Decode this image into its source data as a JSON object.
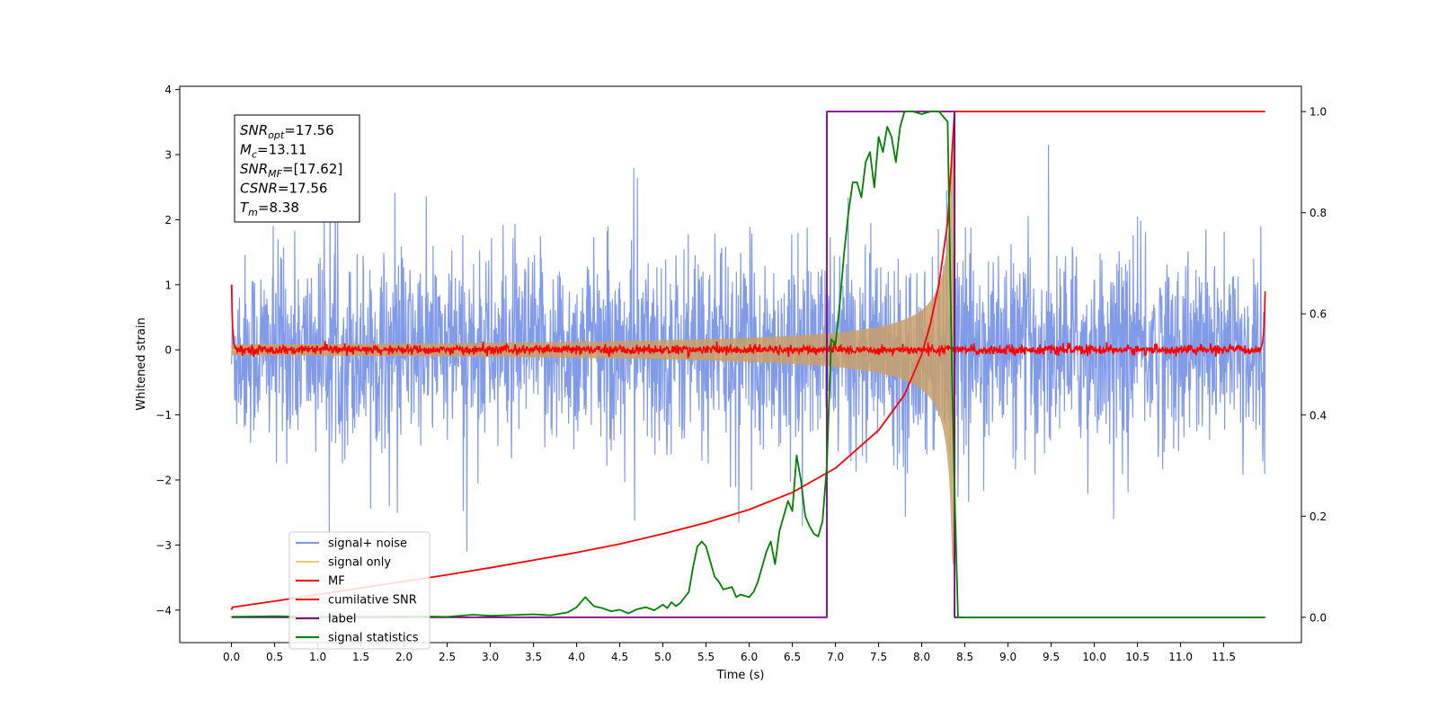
{
  "chart_data": {
    "type": "line",
    "xlabel": "Time (s)",
    "ylabel": "Whitened strain",
    "xlim": [
      -0.6,
      12.4
    ],
    "ylim": [
      -4.5,
      4.05
    ],
    "y2lim": [
      -0.05,
      1.05
    ],
    "x_ticks": [
      0.0,
      0.5,
      1.0,
      1.5,
      2.0,
      2.5,
      3.0,
      3.5,
      4.0,
      4.5,
      5.0,
      5.5,
      6.0,
      6.5,
      7.0,
      7.5,
      8.0,
      8.5,
      9.0,
      9.5,
      10.0,
      10.5,
      11.0,
      11.5
    ],
    "x_tick_labels": [
      "0.0",
      "0.5",
      "1.0",
      "1.5",
      "2.0",
      "2.5",
      "3.0",
      "3.5",
      "4.0",
      "4.5",
      "5.0",
      "5.5",
      "6.0",
      "6.5",
      "7.0",
      "7.5",
      "8.0",
      "8.5",
      "9.0",
      "9.5",
      "10.0",
      "10.5",
      "11.0",
      "11.5"
    ],
    "y_ticks": [
      4,
      3,
      2,
      1,
      0,
      -1,
      -2,
      -3,
      -4
    ],
    "y_tick_labels": [
      "4",
      "3",
      "2",
      "1",
      "0",
      "−1",
      "−2",
      "−3",
      "−4"
    ],
    "y2_ticks": [
      1.0,
      0.8,
      0.6,
      0.4,
      0.2,
      0.0
    ],
    "y2_tick_labels": [
      "1.0",
      "0.8",
      "0.6",
      "0.4",
      "0.2",
      "0.0"
    ],
    "grid": false,
    "legend_position": "lower-left",
    "annotation": {
      "lines": [
        {
          "sym": "SNR",
          "sub": "opt",
          "rest": "=17.56"
        },
        {
          "sym": "M",
          "sub": "c",
          "rest": "=13.11"
        },
        {
          "sym": "SNR",
          "sub": "MF",
          "rest": "=[17.62]"
        },
        {
          "sym": "CSNR",
          "sub": "",
          "rest": "=17.56"
        },
        {
          "sym": "T",
          "sub": "m",
          "rest": "=8.38"
        }
      ]
    },
    "noise_band": {
      "x_start": 0.0,
      "x_end": 11.98,
      "typical_range": [
        -2.0,
        2.0
      ],
      "extreme_range": [
        -4.15,
        3.68
      ]
    },
    "chirp": {
      "x_start": 0.0,
      "x_end": 8.38,
      "peak_amplitude": 3.3
    },
    "series": [
      {
        "name": "signal+ noise",
        "color": "#7b96e8",
        "axis": "left",
        "note_values": "dense noise, not individually readable"
      },
      {
        "name": "signal only",
        "color": "#f5c878",
        "axis": "left"
      },
      {
        "name": "MF",
        "color": "#ff0000",
        "axis": "left",
        "x": [
          0.0,
          0.02,
          0.05,
          11.93,
          11.96,
          11.98
        ],
        "y": [
          1.0,
          0.2,
          0.0,
          0.0,
          0.2,
          0.9
        ]
      },
      {
        "name": "cumilative SNR",
        "color": "#ff0000",
        "axis": "right",
        "x": [
          0.0,
          0.01,
          0.5,
          1.0,
          1.5,
          2.0,
          2.5,
          3.0,
          3.5,
          4.0,
          4.5,
          5.0,
          5.5,
          6.0,
          6.5,
          7.0,
          7.5,
          7.8,
          8.0,
          8.1,
          8.2,
          8.3,
          8.38,
          8.4,
          11.98
        ],
        "y": [
          0.015,
          0.02,
          0.032,
          0.045,
          0.058,
          0.071,
          0.084,
          0.098,
          0.113,
          0.128,
          0.145,
          0.165,
          0.187,
          0.213,
          0.247,
          0.295,
          0.37,
          0.44,
          0.52,
          0.58,
          0.66,
          0.78,
          1.0,
          1.0,
          1.0
        ]
      },
      {
        "name": "label",
        "color": "#800080",
        "axis": "right",
        "x": [
          0.0,
          6.9,
          6.9,
          8.38,
          8.38,
          11.98
        ],
        "y": [
          0.0,
          0.0,
          1.0,
          1.0,
          0.0,
          0.0
        ]
      },
      {
        "name": "signal statistics",
        "color": "#008000",
        "axis": "right",
        "x": [
          0.0,
          0.5,
          1.0,
          1.5,
          2.0,
          2.5,
          2.8,
          3.0,
          3.5,
          3.7,
          3.9,
          4.0,
          4.1,
          4.2,
          4.3,
          4.4,
          4.5,
          4.6,
          4.7,
          4.8,
          4.9,
          5.0,
          5.05,
          5.1,
          5.15,
          5.2,
          5.3,
          5.35,
          5.4,
          5.45,
          5.5,
          5.55,
          5.6,
          5.65,
          5.7,
          5.8,
          5.85,
          5.9,
          6.0,
          6.05,
          6.1,
          6.2,
          6.25,
          6.3,
          6.35,
          6.4,
          6.45,
          6.5,
          6.55,
          6.6,
          6.65,
          6.7,
          6.75,
          6.8,
          6.85,
          6.9,
          6.95,
          7.0,
          7.05,
          7.1,
          7.15,
          7.2,
          7.25,
          7.3,
          7.35,
          7.4,
          7.45,
          7.5,
          7.55,
          7.6,
          7.65,
          7.7,
          7.75,
          7.8,
          7.85,
          7.9,
          8.0,
          8.1,
          8.2,
          8.3,
          8.35,
          8.38,
          8.42,
          8.5,
          9.0,
          9.5,
          10.0,
          10.5,
          11.0,
          11.5,
          11.98
        ],
        "y": [
          0.001,
          0.002,
          0.001,
          0.001,
          0.002,
          0.001,
          0.005,
          0.003,
          0.006,
          0.004,
          0.01,
          0.02,
          0.04,
          0.022,
          0.018,
          0.012,
          0.015,
          0.008,
          0.016,
          0.02,
          0.014,
          0.025,
          0.018,
          0.03,
          0.022,
          0.028,
          0.05,
          0.1,
          0.14,
          0.15,
          0.14,
          0.11,
          0.08,
          0.07,
          0.055,
          0.06,
          0.04,
          0.045,
          0.04,
          0.05,
          0.07,
          0.13,
          0.15,
          0.105,
          0.17,
          0.2,
          0.23,
          0.21,
          0.32,
          0.27,
          0.2,
          0.18,
          0.165,
          0.16,
          0.19,
          0.3,
          0.55,
          0.54,
          0.62,
          0.72,
          0.8,
          0.86,
          0.86,
          0.83,
          0.9,
          0.92,
          0.85,
          0.95,
          0.92,
          0.97,
          0.95,
          0.9,
          0.97,
          1.0,
          1.0,
          1.0,
          0.995,
          1.0,
          1.0,
          0.98,
          0.48,
          0.25,
          0.0,
          0.0,
          0.0,
          0.0,
          0.0,
          0.0,
          0.0,
          0.0,
          0.0
        ]
      }
    ]
  }
}
